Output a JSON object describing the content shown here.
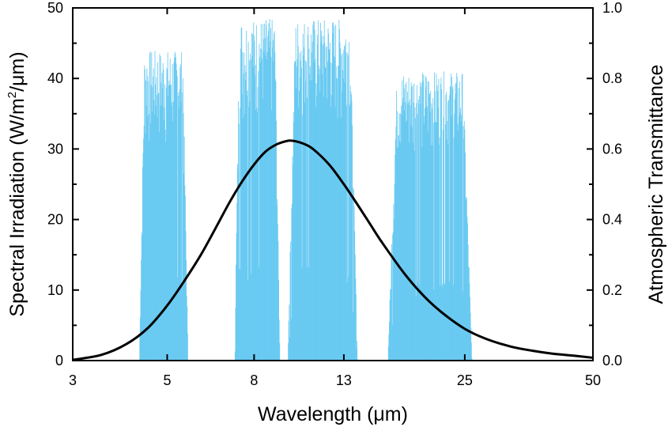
{
  "chart_data": {
    "type": "line",
    "x_scale": "log",
    "xlabel_prefix": "Wavelength (",
    "xlabel_unit": "μm",
    "xlabel_suffix": ")",
    "ylabel_left_prefix": "Spectral Irradiation (W/m",
    "ylabel_left_sup": "2",
    "ylabel_left_suffix": "/μm)",
    "ylabel_right": "Atmospheric Transmittance",
    "xlim": [
      3,
      50
    ],
    "ylim_left": [
      0,
      50
    ],
    "ylim_right": [
      0,
      1.0
    ],
    "x_ticks": [
      3,
      5,
      8,
      13,
      25,
      50
    ],
    "x_tick_labels": [
      "3",
      "5",
      "8",
      "13",
      "25",
      "50"
    ],
    "y_left_ticks": [
      0,
      10,
      20,
      30,
      40,
      50
    ],
    "y_left_tick_labels": [
      "0",
      "10",
      "20",
      "30",
      "40",
      "50"
    ],
    "y_right_ticks": [
      0,
      0.2,
      0.4,
      0.6,
      0.8,
      1.0
    ],
    "y_right_tick_labels": [
      "0.0",
      "0.2",
      "0.4",
      "0.6",
      "0.8",
      "1.0"
    ],
    "colors": {
      "transmittance": "#5bc4f0",
      "irradiation": "#000000"
    },
    "series": [
      {
        "name": "Spectral Irradiation",
        "axis": "left",
        "x": [
          3.0,
          3.5,
          4.0,
          4.5,
          5.0,
          5.5,
          6.0,
          6.5,
          7.0,
          7.5,
          8.0,
          8.5,
          9.0,
          9.5,
          9.7,
          10.0,
          10.5,
          11.0,
          12.0,
          13.0,
          14.0,
          15.0,
          16.0,
          18.0,
          20.0,
          22.0,
          25.0,
          28.0,
          32.0,
          36.0,
          40.0,
          45.0,
          50.0
        ],
        "values": [
          0.1,
          0.8,
          2.3,
          4.6,
          7.8,
          11.4,
          15.0,
          18.8,
          22.4,
          25.4,
          27.8,
          29.6,
          30.6,
          31.1,
          31.2,
          31.1,
          30.7,
          30.0,
          27.8,
          25.0,
          22.1,
          19.3,
          16.7,
          12.4,
          9.2,
          6.9,
          4.5,
          3.1,
          2.0,
          1.4,
          1.0,
          0.7,
          0.4
        ]
      },
      {
        "name": "Atmospheric Transmittance",
        "axis": "right",
        "type": "area",
        "bands": [
          {
            "range": [
              4.3,
              5.6
            ],
            "peak": 0.88
          },
          {
            "range": [
              7.2,
              9.2
            ],
            "peak": 0.97
          },
          {
            "range": [
              9.6,
              14.0
            ],
            "peak": 0.97
          },
          {
            "range": [
              16.5,
              26.0
            ],
            "peak": 0.82
          }
        ]
      }
    ]
  }
}
